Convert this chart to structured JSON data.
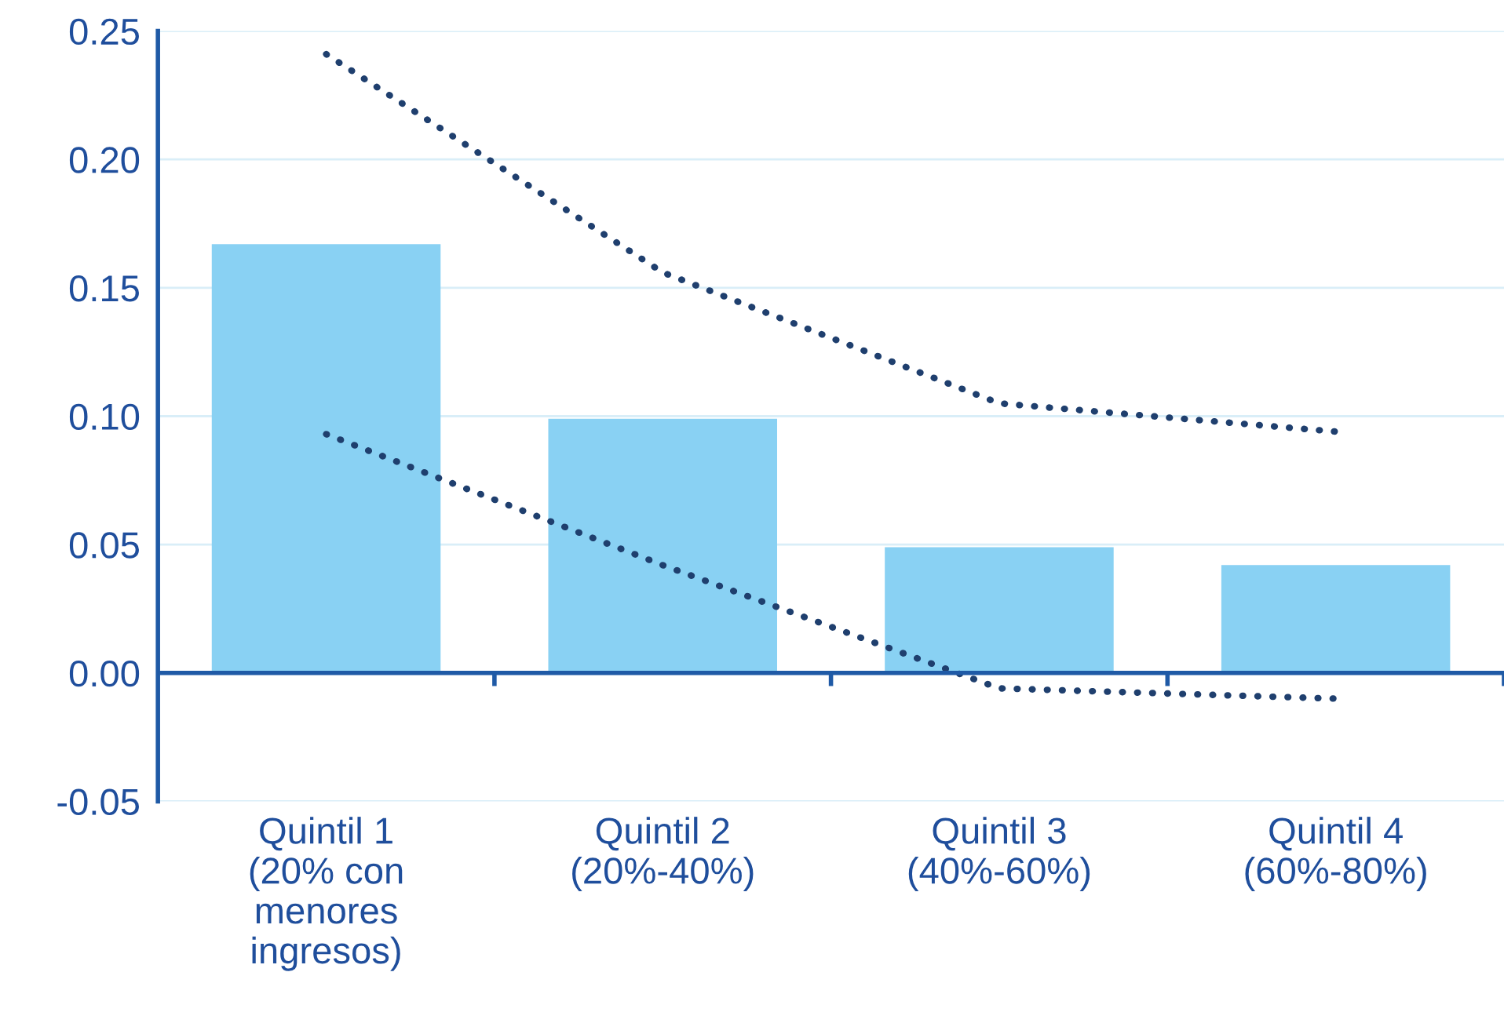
{
  "chart_data": {
    "type": "bar",
    "categories": [
      "Quintil 1\n(20% con\nmenores\ningresos)",
      "Quintil 2\n(20%-40%)",
      "Quintil 3\n(40%-60%)",
      "Quintil 4\n(60%-80%)"
    ],
    "series": [
      {
        "color": "#89d1f3",
        "values": [
          0.167,
          0.099,
          0.049,
          0.042
        ]
      },
      {
        "type": "line",
        "color": "#1f3f6e",
        "line_style": "dotted",
        "values": [
          0.241,
          0.156,
          0.105,
          0.094
        ]
      },
      {
        "type": "line",
        "color": "#1f3f6e",
        "line_style": "dotted",
        "values": [
          0.093,
          0.042,
          -0.006,
          -0.01
        ]
      }
    ],
    "ylim": [
      -0.05,
      0.25
    ],
    "yticks": [
      {
        "value": -0.05,
        "label": "-0.05"
      },
      {
        "value": 0.0,
        "label": "0.00"
      },
      {
        "value": 0.05,
        "label": "0.05"
      },
      {
        "value": 0.1,
        "label": "0.10"
      },
      {
        "value": 0.15,
        "label": "0.15"
      },
      {
        "value": 0.2,
        "label": "0.20"
      },
      {
        "value": 0.25,
        "label": "0.25"
      }
    ],
    "ref_lines": [
      {
        "axis": "y",
        "value": 0,
        "color": "#1f5aa6"
      }
    ],
    "grid": "y"
  }
}
